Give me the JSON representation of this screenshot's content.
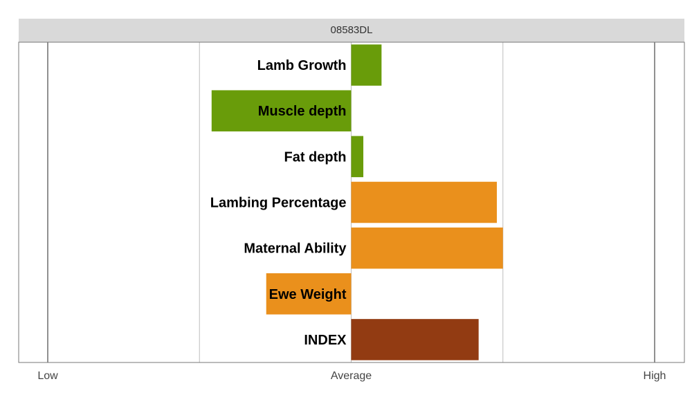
{
  "chart_data": {
    "type": "bar",
    "orientation": "horizontal",
    "title": "08583DL",
    "categories": [
      "Lamb Growth",
      "Muscle depth",
      "Fat depth",
      "Lambing Percentage",
      "Maternal Ability",
      "Ewe Weight",
      "INDEX"
    ],
    "values": [
      0.2,
      -0.92,
      0.08,
      0.96,
      1.0,
      -0.56,
      0.84
    ],
    "bar_colors": [
      "#699c0a",
      "#699c0a",
      "#699c0a",
      "#ea901c",
      "#ea901c",
      "#ea901c",
      "#923b12"
    ],
    "xlim": [
      -2,
      2
    ],
    "x_ticks": [
      {
        "value": -2,
        "label": "Low"
      },
      {
        "value": 0,
        "label": "Average"
      },
      {
        "value": 2,
        "label": "High"
      }
    ],
    "x_gridlines": [
      -2,
      -1,
      0,
      1,
      2
    ],
    "grid": true,
    "legend": "none",
    "colors": {
      "growth_group": "#699c0a",
      "maternal_group": "#ea901c",
      "index": "#923b12",
      "strip": "#d9d9d9"
    }
  }
}
